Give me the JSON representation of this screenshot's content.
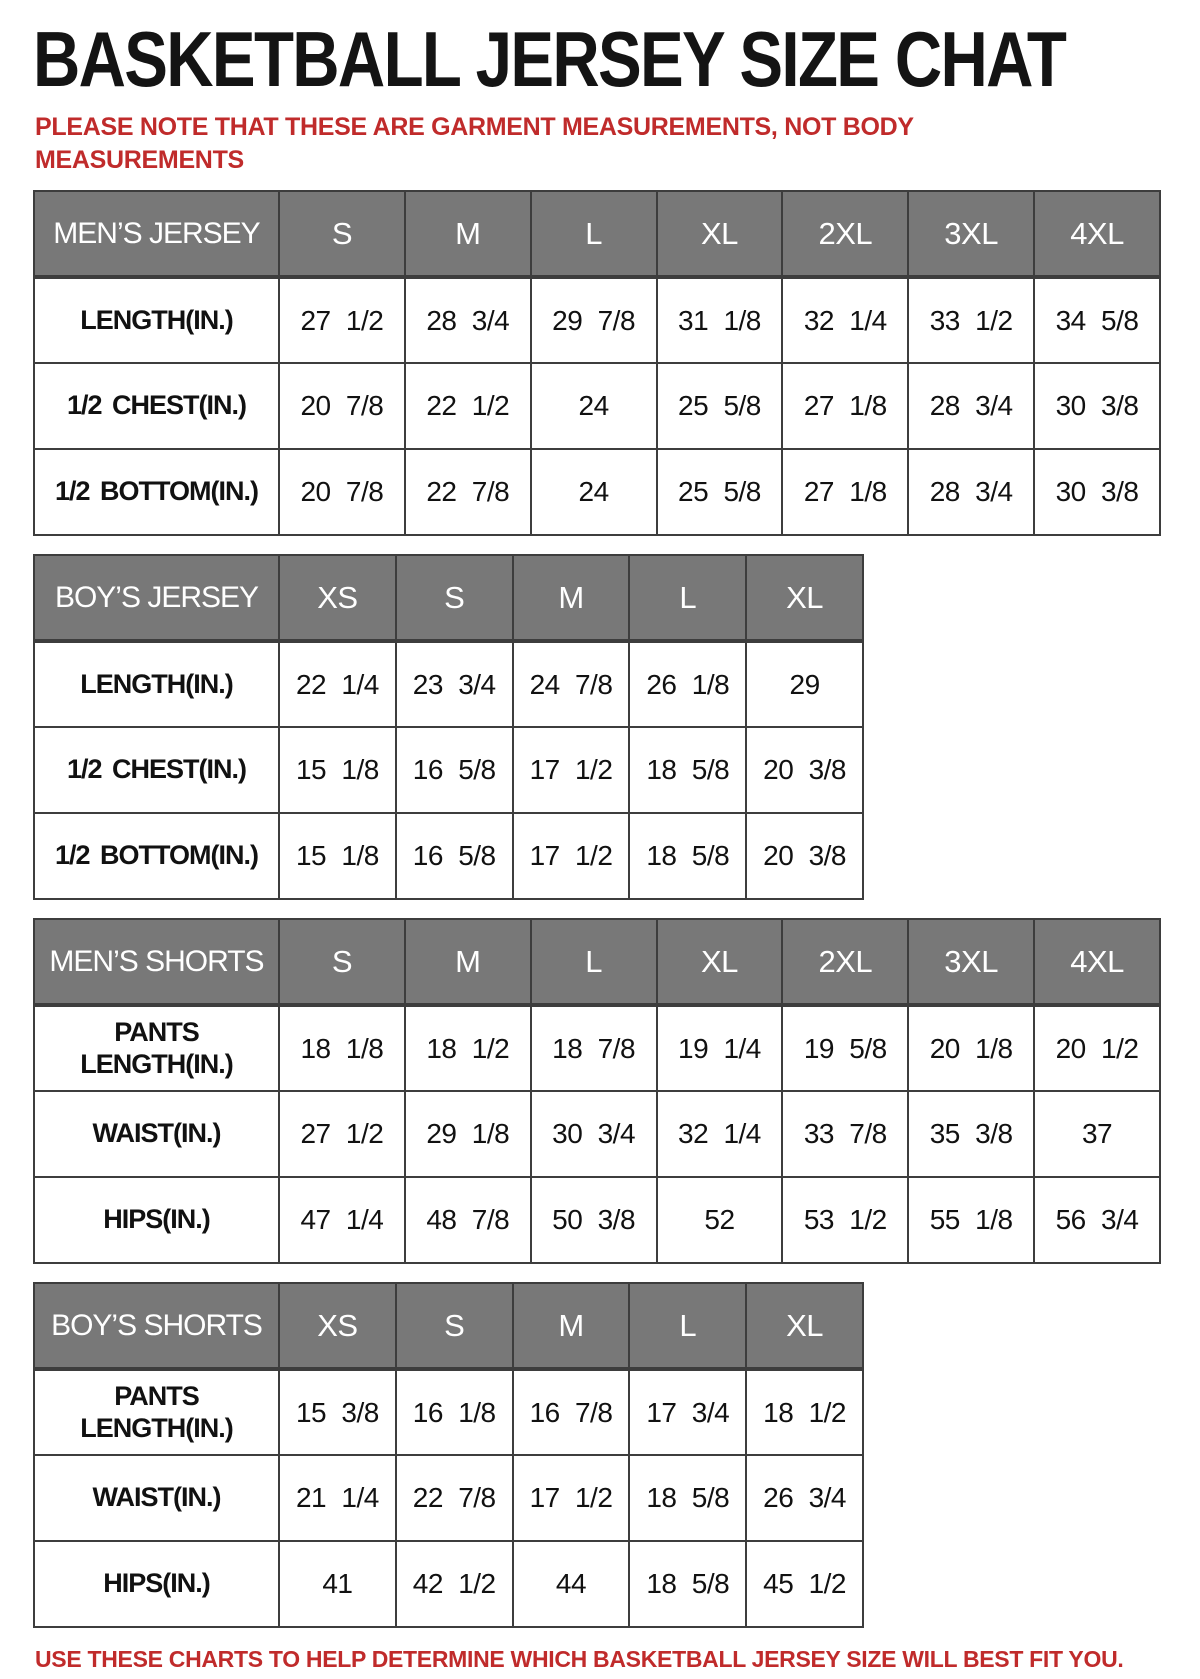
{
  "page": {
    "title": "BASKETBALL JERSEY SIZE CHAT",
    "note": "PLEASE NOTE THAT THESE ARE GARMENT MEASUREMENTS, NOT BODY MEASUREMENTS",
    "footer": "USE THESE CHARTS TO HELP DETERMINE WHICH BASKETBALL JERSEY SIZE WILL BEST FIT YOU.",
    "colors": {
      "accent_red": "#c02b2b",
      "header_gray": "#787878",
      "header_text": "#ffffff",
      "table_border": "#3d3d3d"
    }
  },
  "tables": [
    {
      "name": "mens-jersey",
      "header_label": "MEN’S JERSEY",
      "sizes": [
        "S",
        "M",
        "L",
        "XL",
        "2XL",
        "3XL",
        "4XL"
      ],
      "rows": [
        {
          "label": "LENGTH(IN.)",
          "values": [
            "27 1/2",
            "28 3/4",
            "29 7/8",
            "31 1/8",
            "32 1/4",
            "33 1/2",
            "34 5/8"
          ]
        },
        {
          "label": "1/2 CHEST(IN.)",
          "values": [
            "20 7/8",
            "22 1/2",
            "24",
            "25 5/8",
            "27 1/8",
            "28 3/4",
            "30 3/8"
          ]
        },
        {
          "label": "1/2 BOTTOM(IN.)",
          "values": [
            "20 7/8",
            "22 7/8",
            "24",
            "25 5/8",
            "27 1/8",
            "28 3/4",
            "30 3/8"
          ]
        }
      ]
    },
    {
      "name": "boys-jersey",
      "header_label": "BOY’S JERSEY",
      "sizes": [
        "XS",
        "S",
        "M",
        "L",
        "XL"
      ],
      "rows": [
        {
          "label": "LENGTH(IN.)",
          "values": [
            "22 1/4",
            "23 3/4",
            "24 7/8",
            "26 1/8",
            "29"
          ]
        },
        {
          "label": "1/2 CHEST(IN.)",
          "values": [
            "15 1/8",
            "16 5/8",
            "17 1/2",
            "18 5/8",
            "20 3/8"
          ]
        },
        {
          "label": "1/2 BOTTOM(IN.)",
          "values": [
            "15 1/8",
            "16 5/8",
            "17 1/2",
            "18 5/8",
            "20 3/8"
          ]
        }
      ]
    },
    {
      "name": "mens-shorts",
      "header_label": "MEN’S SHORTS",
      "sizes": [
        "S",
        "M",
        "L",
        "XL",
        "2XL",
        "3XL",
        "4XL"
      ],
      "rows": [
        {
          "label": "PANTS LENGTH(IN.)",
          "values": [
            "18 1/8",
            "18 1/2",
            "18 7/8",
            "19 1/4",
            "19 5/8",
            "20 1/8",
            "20 1/2"
          ]
        },
        {
          "label": "WAIST(IN.)",
          "values": [
            "27 1/2",
            "29 1/8",
            "30 3/4",
            "32 1/4",
            "33 7/8",
            "35 3/8",
            "37"
          ]
        },
        {
          "label": "HIPS(IN.)",
          "values": [
            "47 1/4",
            "48 7/8",
            "50 3/8",
            "52",
            "53 1/2",
            "55 1/8",
            "56 3/4"
          ]
        }
      ]
    },
    {
      "name": "boys-shorts",
      "header_label": "BOY’S SHORTS",
      "sizes": [
        "XS",
        "S",
        "M",
        "L",
        "XL"
      ],
      "rows": [
        {
          "label": "PANTS LENGTH(IN.)",
          "values": [
            "15 3/8",
            "16 1/8",
            "16 7/8",
            "17 3/4",
            "18 1/2"
          ]
        },
        {
          "label": "WAIST(IN.)",
          "values": [
            "21 1/4",
            "22 7/8",
            "17 1/2",
            "18 5/8",
            "26 3/4"
          ]
        },
        {
          "label": "HIPS(IN.)",
          "values": [
            "41",
            "42 1/2",
            "44",
            "18 5/8",
            "45 1/2"
          ]
        }
      ]
    }
  ]
}
